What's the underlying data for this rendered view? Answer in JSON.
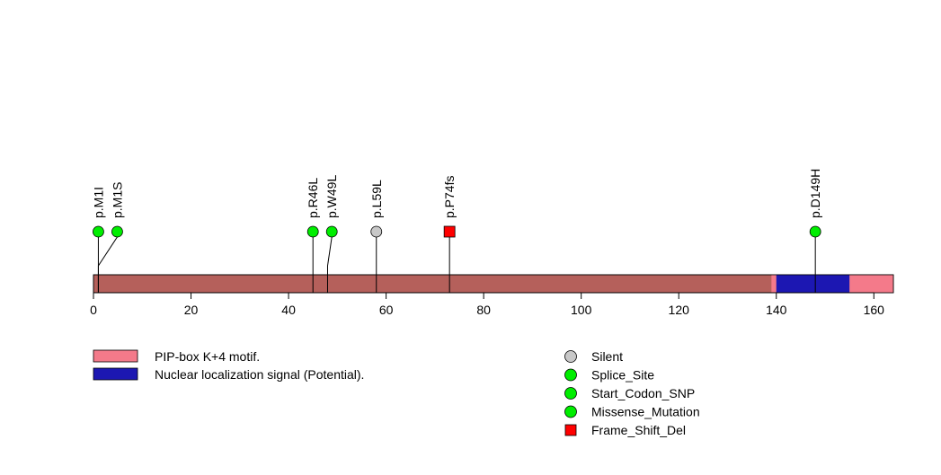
{
  "chart_data": {
    "type": "lollipop",
    "x_axis": {
      "min": 0,
      "max": 164,
      "ticks": [
        0,
        20,
        40,
        60,
        80,
        100,
        120,
        140,
        160
      ],
      "tick_labels": [
        "0",
        "20",
        "40",
        "60",
        "80",
        "100",
        "120",
        "140",
        "160"
      ]
    },
    "protein": {
      "length": 164,
      "base_color": "#b5605b"
    },
    "domains": [
      {
        "name": "PIP-box K+4 motif.",
        "start": 139,
        "end": 164,
        "color": "#f47a8a"
      },
      {
        "name": "Nuclear localization signal (Potential).",
        "start": 140,
        "end": 155,
        "color": "#1c17b2"
      }
    ],
    "mutations": [
      {
        "label": "p.M1I",
        "position": 1,
        "type": "Start_Codon_SNP"
      },
      {
        "label": "p.M1S",
        "position": 1,
        "type": "Start_Codon_SNP"
      },
      {
        "label": "p.R46L",
        "position": 45,
        "type": "Missense_Mutation"
      },
      {
        "label": "p.W49L",
        "position": 48,
        "type": "Missense_Mutation"
      },
      {
        "label": "p.L59L",
        "position": 58,
        "type": "Silent"
      },
      {
        "label": "p.P74fs",
        "position": 73,
        "type": "Frame_Shift_Del"
      },
      {
        "label": "p.D149H",
        "position": 148,
        "type": "Missense_Mutation"
      }
    ],
    "mutation_legend": [
      {
        "label": "Silent",
        "shape": "circle",
        "color": "#c8c8c8"
      },
      {
        "label": "Splice_Site",
        "shape": "circle",
        "color": "#00ee00"
      },
      {
        "label": "Start_Codon_SNP",
        "shape": "circle",
        "color": "#00ee00"
      },
      {
        "label": "Missense_Mutation",
        "shape": "circle",
        "color": "#00ee00"
      },
      {
        "label": "Frame_Shift_Del",
        "shape": "square",
        "color": "#ff0000"
      }
    ]
  }
}
